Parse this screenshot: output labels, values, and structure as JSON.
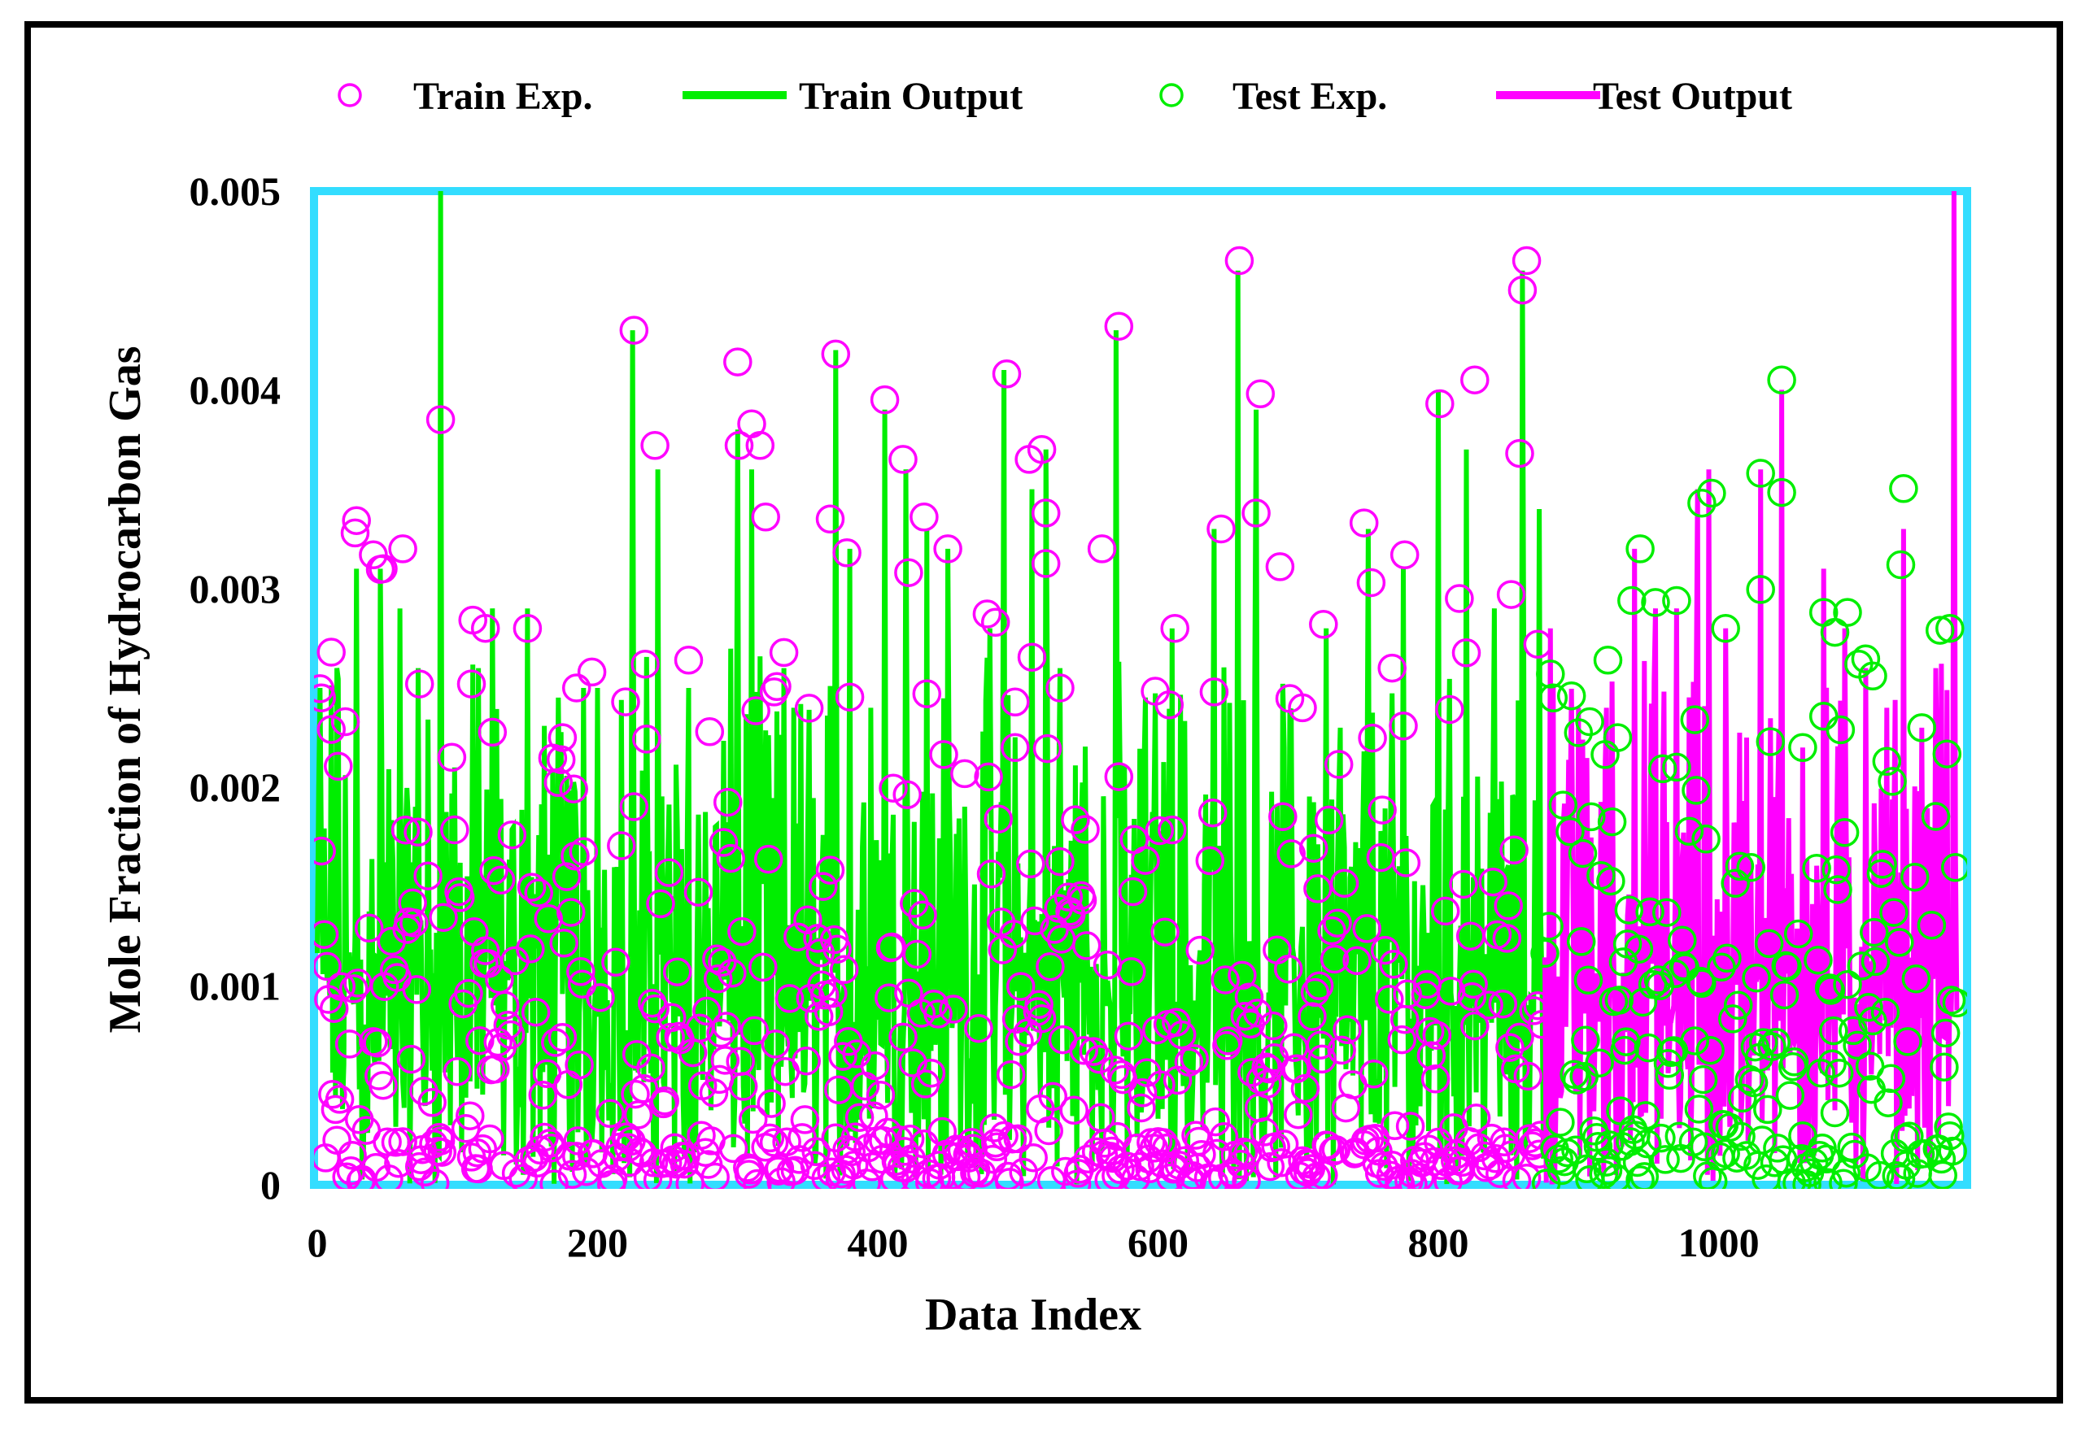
{
  "chart_data": {
    "type": "line",
    "title": "",
    "xlabel": "Data Index",
    "ylabel": "Mole Fraction of Hydrocarbon Gas",
    "xlim": [
      0,
      1175
    ],
    "ylim": [
      0,
      0.005
    ],
    "x_ticks": [
      "0",
      "200",
      "400",
      "600",
      "800",
      "1000"
    ],
    "y_ticks": [
      "0",
      "0.001",
      "0.002",
      "0.003",
      "0.004",
      "0.005"
    ],
    "legend_position": "top",
    "colors": {
      "train": "#00ee00",
      "test": "#ff00ff",
      "plot_border": "#33ddff"
    },
    "legend": [
      {
        "label": "Train Exp.",
        "marker": "circle",
        "color": "#ff00ff"
      },
      {
        "label": "Train Output",
        "marker": "line",
        "color": "#00ee00"
      },
      {
        "label": "Test Exp.",
        "marker": "circle",
        "color": "#00ee00"
      },
      {
        "label": "Test Output",
        "marker": "line",
        "color": "#ff00ff"
      }
    ],
    "series": [
      {
        "name": "Train Output",
        "x_range": [
          0,
          875
        ],
        "peaks": [
          [
            2,
            0.0025
          ],
          [
            14,
            0.0026
          ],
          [
            28,
            0.0031
          ],
          [
            45,
            0.0031
          ],
          [
            59,
            0.0029
          ],
          [
            72,
            0.0026
          ],
          [
            88,
            0.005
          ],
          [
            98,
            0.0021
          ],
          [
            115,
            0.0026
          ],
          [
            125,
            0.0029
          ],
          [
            140,
            0.0018
          ],
          [
            150,
            0.0029
          ],
          [
            190,
            0.0025
          ],
          [
            200,
            0.0025
          ],
          [
            214,
            0.0016
          ],
          [
            225,
            0.0043
          ],
          [
            243,
            0.0036
          ],
          [
            265,
            0.0025
          ],
          [
            300,
            0.0038
          ],
          [
            310,
            0.0036
          ],
          [
            340,
            0.0024
          ],
          [
            370,
            0.0042
          ],
          [
            380,
            0.0032
          ],
          [
            395,
            0.0024
          ],
          [
            405,
            0.0039
          ],
          [
            420,
            0.0036
          ],
          [
            435,
            0.0033
          ],
          [
            450,
            0.0032
          ],
          [
            480,
            0.0028
          ],
          [
            490,
            0.0041
          ],
          [
            510,
            0.0035
          ],
          [
            520,
            0.0037
          ],
          [
            530,
            0.0026
          ],
          [
            570,
            0.0043
          ],
          [
            590,
            0.0021
          ],
          [
            610,
            0.0028
          ],
          [
            640,
            0.0033
          ],
          [
            657,
            0.0046
          ],
          [
            670,
            0.0039
          ],
          [
            690,
            0.0022
          ],
          [
            720,
            0.0028
          ],
          [
            730,
            0.0023
          ],
          [
            750,
            0.0033
          ],
          [
            775,
            0.0031
          ],
          [
            800,
            0.004
          ],
          [
            820,
            0.0037
          ],
          [
            840,
            0.0029
          ],
          [
            860,
            0.0046
          ],
          [
            872,
            0.0034
          ]
        ]
      },
      {
        "name": "Test Output",
        "x_range": [
          876,
          1170
        ],
        "peaks": [
          [
            880,
            0.0028
          ],
          [
            900,
            0.0024
          ],
          [
            920,
            0.0024
          ],
          [
            940,
            0.0032
          ],
          [
            955,
            0.0029
          ],
          [
            970,
            0.0029
          ],
          [
            985,
            0.0035
          ],
          [
            993,
            0.0036
          ],
          [
            1005,
            0.0028
          ],
          [
            1030,
            0.0036
          ],
          [
            1045,
            0.004
          ],
          [
            1060,
            0.0022
          ],
          [
            1075,
            0.0031
          ],
          [
            1090,
            0.0028
          ],
          [
            1105,
            0.0026
          ],
          [
            1120,
            0.0024
          ],
          [
            1132,
            0.0033
          ],
          [
            1145,
            0.0023
          ],
          [
            1155,
            0.0026
          ],
          [
            1168,
            0.005
          ]
        ]
      },
      {
        "name": "Train Exp.",
        "x_range": [
          0,
          875
        ],
        "high_points": [
          [
            3,
            0.00245
          ],
          [
            10,
            0.00268
          ],
          [
            20,
            0.00233
          ],
          [
            27,
            0.00328
          ],
          [
            40,
            0.00317
          ],
          [
            47,
            0.0031
          ],
          [
            61,
            0.0032
          ],
          [
            73,
            0.00252
          ],
          [
            88,
            0.00385
          ],
          [
            110,
            0.00252
          ],
          [
            120,
            0.0028
          ],
          [
            150,
            0.0028
          ],
          [
            175,
            0.00225
          ],
          [
            185,
            0.0025
          ],
          [
            196,
            0.00258
          ],
          [
            220,
            0.00243
          ],
          [
            226,
            0.0043
          ],
          [
            234,
            0.00262
          ],
          [
            241,
            0.00372
          ],
          [
            265,
            0.00264
          ],
          [
            280,
            0.00228
          ],
          [
            301,
            0.00372
          ],
          [
            316,
            0.00372
          ],
          [
            320,
            0.00336
          ],
          [
            326,
            0.00248
          ],
          [
            366,
            0.00335
          ],
          [
            370,
            0.00418
          ],
          [
            378,
            0.00318
          ],
          [
            405,
            0.00395
          ],
          [
            418,
            0.00365
          ],
          [
            422,
            0.00308
          ],
          [
            433,
            0.00336
          ],
          [
            450,
            0.0032
          ],
          [
            484,
            0.00283
          ],
          [
            492,
            0.00408
          ],
          [
            498,
            0.0022
          ],
          [
            508,
            0.00365
          ],
          [
            517,
            0.0037
          ],
          [
            520,
            0.00338
          ],
          [
            530,
            0.0025
          ],
          [
            560,
            0.0032
          ],
          [
            572,
            0.00432
          ],
          [
            612,
            0.0028
          ],
          [
            640,
            0.00248
          ],
          [
            645,
            0.0033
          ],
          [
            658,
            0.00465
          ],
          [
            670,
            0.00338
          ],
          [
            673,
            0.00398
          ],
          [
            687,
            0.00311
          ],
          [
            703,
            0.0024
          ],
          [
            718,
            0.00282
          ],
          [
            747,
            0.00333
          ],
          [
            752,
            0.00303
          ],
          [
            767,
            0.0026
          ],
          [
            776,
            0.00317
          ],
          [
            801,
            0.00393
          ],
          [
            815,
            0.00295
          ],
          [
            826,
            0.00405
          ],
          [
            852,
            0.00297
          ],
          [
            858,
            0.00368
          ],
          [
            863,
            0.00465
          ],
          [
            871,
            0.00272
          ]
        ]
      },
      {
        "name": "Test Exp.",
        "x_range": [
          876,
          1170
        ],
        "high_points": [
          [
            880,
            0.00257
          ],
          [
            908,
            0.00233
          ],
          [
            921,
            0.00264
          ],
          [
            928,
            0.00225
          ],
          [
            938,
            0.00294
          ],
          [
            944,
            0.0032
          ],
          [
            955,
            0.00293
          ],
          [
            970,
            0.00294
          ],
          [
            983,
            0.00234
          ],
          [
            988,
            0.00343
          ],
          [
            995,
            0.00348
          ],
          [
            1005,
            0.0028
          ],
          [
            1030,
            0.00358
          ],
          [
            1045,
            0.00405
          ],
          [
            1060,
            0.0022
          ],
          [
            1075,
            0.00288
          ],
          [
            1083,
            0.00278
          ],
          [
            1092,
            0.00288
          ],
          [
            1100,
            0.00262
          ],
          [
            1110,
            0.00256
          ],
          [
            1130,
            0.00312
          ],
          [
            1145,
            0.0023
          ],
          [
            1158,
            0.00279
          ],
          [
            1165,
            0.0028
          ]
        ]
      }
    ]
  }
}
